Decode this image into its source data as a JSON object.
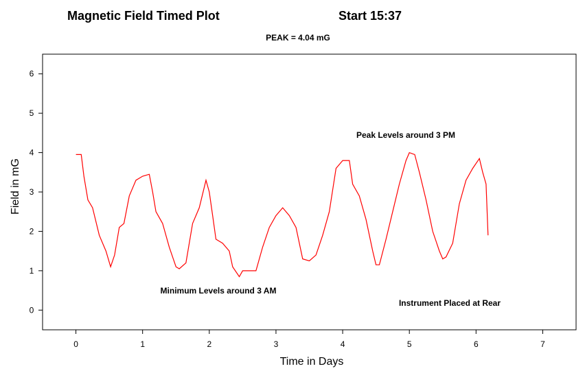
{
  "chart_data": {
    "type": "line",
    "title": "Magnetic Field Timed Plot",
    "title_right": "Start 15:37",
    "subtitle": "PEAK = 4.04 mG",
    "xlabel": "Time in Days",
    "ylabel": "Field in mG",
    "xlim": [
      -0.5,
      7.5
    ],
    "ylim": [
      -0.5,
      6.5
    ],
    "xticks": [
      "0",
      "1",
      "2",
      "3",
      "4",
      "5",
      "6",
      "7"
    ],
    "yticks": [
      "0",
      "1",
      "2",
      "3",
      "4",
      "5",
      "6"
    ],
    "grid": false,
    "line_color": "#ff0000",
    "annotations": [
      {
        "text": "Peak Levels around 3 PM"
      },
      {
        "text": "Minimum Levels around 3 AM"
      },
      {
        "text": "Instrument Placed at Rear"
      }
    ],
    "series": [
      {
        "x": [
          0.0,
          0.08,
          0.12,
          0.18,
          0.25,
          0.35,
          0.45,
          0.52,
          0.58,
          0.65,
          0.72,
          0.8,
          0.9,
          1.0,
          1.1,
          1.15,
          1.2,
          1.3,
          1.4,
          1.5,
          1.55,
          1.65,
          1.75,
          1.85,
          1.95,
          2.0,
          2.05,
          2.1,
          2.2,
          2.3,
          2.35,
          2.45,
          2.5,
          2.6,
          2.7,
          2.8,
          2.9,
          3.0,
          3.1,
          3.2,
          3.3,
          3.4,
          3.5,
          3.6,
          3.7,
          3.8,
          3.9,
          4.0,
          4.1,
          4.15,
          4.25,
          4.35,
          4.45,
          4.5,
          4.55,
          4.65,
          4.75,
          4.85,
          4.95,
          5.0,
          5.08,
          5.15,
          5.25,
          5.35,
          5.45,
          5.5,
          5.55,
          5.65,
          5.75,
          5.85,
          5.95,
          6.05,
          6.1,
          6.15,
          6.18
        ],
        "y": [
          3.95,
          3.95,
          3.4,
          2.8,
          2.6,
          1.9,
          1.5,
          1.1,
          1.4,
          2.1,
          2.2,
          2.9,
          3.3,
          3.4,
          3.45,
          3.0,
          2.5,
          2.2,
          1.6,
          1.1,
          1.05,
          1.2,
          2.2,
          2.6,
          3.3,
          3.0,
          2.4,
          1.8,
          1.7,
          1.5,
          1.1,
          0.85,
          1.0,
          1.0,
          1.0,
          1.6,
          2.1,
          2.4,
          2.6,
          2.4,
          2.1,
          1.3,
          1.25,
          1.4,
          1.9,
          2.5,
          3.6,
          3.8,
          3.8,
          3.2,
          2.9,
          2.3,
          1.5,
          1.15,
          1.15,
          1.8,
          2.5,
          3.2,
          3.8,
          4.0,
          3.95,
          3.5,
          2.8,
          2.0,
          1.5,
          1.3,
          1.35,
          1.7,
          2.7,
          3.3,
          3.6,
          3.85,
          3.5,
          3.2,
          1.9
        ]
      }
    ]
  }
}
